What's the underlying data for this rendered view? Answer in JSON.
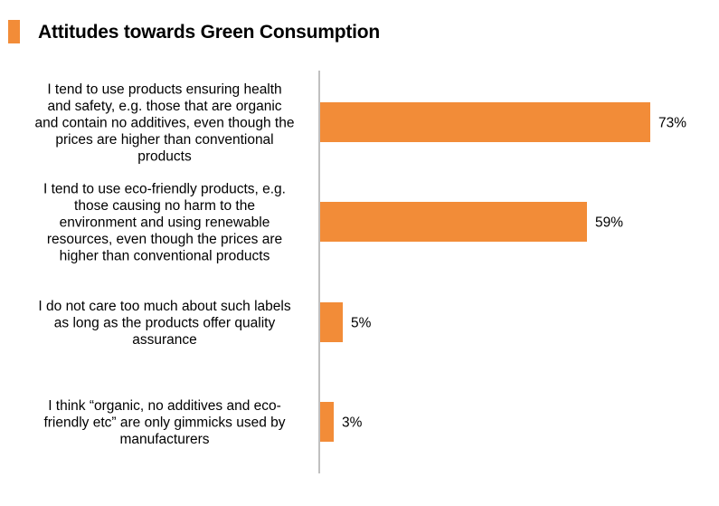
{
  "title": "Attitudes towards Green Consumption",
  "colors": {
    "bar": "#F28C38",
    "title_marker": "#F28C38",
    "axis": "#808080"
  },
  "chart_data": {
    "type": "bar",
    "orientation": "horizontal",
    "title": "Attitudes towards Green Consumption",
    "xlabel": "",
    "ylabel": "",
    "xlim": [
      0,
      100
    ],
    "grid": false,
    "categories": [
      [
        "I tend to use products ensuring health",
        "and safety, e.g. those that are organic",
        "and contain no additives, even though the",
        "prices are higher than conventional",
        "products"
      ],
      [
        "I tend to use eco-friendly products, e.g.",
        "those causing no harm to the",
        "environment and using renewable",
        "resources, even though the prices are",
        "higher than conventional products"
      ],
      [
        "I do not care too much about such labels",
        "as long as the products offer quality",
        "assurance"
      ],
      [
        "I think “organic, no additives and eco-",
        "friendly etc” are only gimmicks used by",
        "manufacturers"
      ]
    ],
    "values": [
      73,
      59,
      5,
      3
    ],
    "value_labels": [
      "73%",
      "59%",
      "5%",
      "3%"
    ]
  }
}
